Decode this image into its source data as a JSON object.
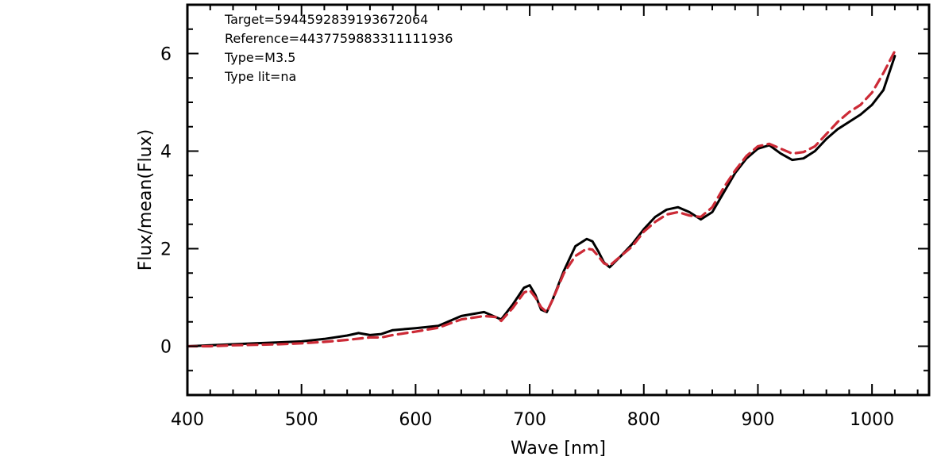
{
  "chart_data": {
    "type": "line",
    "title": "",
    "xlabel": "Wave [nm]",
    "ylabel": "Flux/mean(Flux)",
    "xlim": [
      400,
      1050
    ],
    "ylim": [
      -1,
      7
    ],
    "x_ticks": [
      400,
      500,
      600,
      700,
      800,
      900,
      1000
    ],
    "y_ticks": [
      0,
      2,
      4,
      6
    ],
    "grid": false,
    "legend": "none",
    "annotations": [
      "Target=5944592839193672064",
      "Reference=4437759883311111936",
      "Type=M3.5",
      "Type lit=na"
    ],
    "series": [
      {
        "style": "solid",
        "color": "#000000",
        "x": [
          400,
          420,
          440,
          460,
          480,
          500,
          520,
          540,
          550,
          560,
          570,
          580,
          600,
          620,
          640,
          660,
          670,
          675,
          685,
          695,
          700,
          705,
          710,
          715,
          720,
          730,
          740,
          750,
          755,
          760,
          765,
          770,
          780,
          790,
          800,
          810,
          820,
          830,
          840,
          850,
          860,
          870,
          880,
          890,
          900,
          910,
          920,
          930,
          940,
          950,
          960,
          970,
          980,
          990,
          1000,
          1010,
          1020
        ],
        "y": [
          0.0,
          0.02,
          0.04,
          0.06,
          0.08,
          0.1,
          0.15,
          0.22,
          0.27,
          0.23,
          0.25,
          0.33,
          0.37,
          0.42,
          0.62,
          0.7,
          0.6,
          0.55,
          0.85,
          1.2,
          1.25,
          1.05,
          0.75,
          0.7,
          0.95,
          1.55,
          2.05,
          2.2,
          2.15,
          1.95,
          1.72,
          1.62,
          1.85,
          2.1,
          2.4,
          2.65,
          2.8,
          2.85,
          2.75,
          2.6,
          2.75,
          3.15,
          3.55,
          3.85,
          4.05,
          4.12,
          3.95,
          3.82,
          3.85,
          4.0,
          4.25,
          4.45,
          4.6,
          4.75,
          4.95,
          5.25,
          5.95
        ]
      },
      {
        "style": "dashed",
        "color": "#cc2a36",
        "x": [
          400,
          420,
          440,
          460,
          480,
          500,
          520,
          540,
          560,
          570,
          580,
          600,
          620,
          640,
          660,
          670,
          675,
          685,
          695,
          700,
          705,
          710,
          715,
          720,
          730,
          740,
          750,
          755,
          760,
          765,
          770,
          780,
          790,
          800,
          810,
          820,
          830,
          840,
          850,
          860,
          870,
          880,
          890,
          900,
          910,
          920,
          930,
          940,
          950,
          960,
          970,
          980,
          990,
          1000,
          1010,
          1020
        ],
        "y": [
          0.0,
          0.0,
          0.02,
          0.03,
          0.04,
          0.06,
          0.09,
          0.13,
          0.18,
          0.18,
          0.23,
          0.3,
          0.38,
          0.55,
          0.62,
          0.6,
          0.52,
          0.78,
          1.1,
          1.15,
          1.0,
          0.8,
          0.7,
          0.95,
          1.5,
          1.85,
          2.0,
          1.98,
          1.85,
          1.7,
          1.65,
          1.85,
          2.05,
          2.35,
          2.55,
          2.7,
          2.75,
          2.68,
          2.65,
          2.85,
          3.25,
          3.6,
          3.9,
          4.1,
          4.15,
          4.05,
          3.95,
          3.98,
          4.1,
          4.35,
          4.6,
          4.8,
          4.95,
          5.2,
          5.6,
          6.05
        ]
      }
    ]
  }
}
